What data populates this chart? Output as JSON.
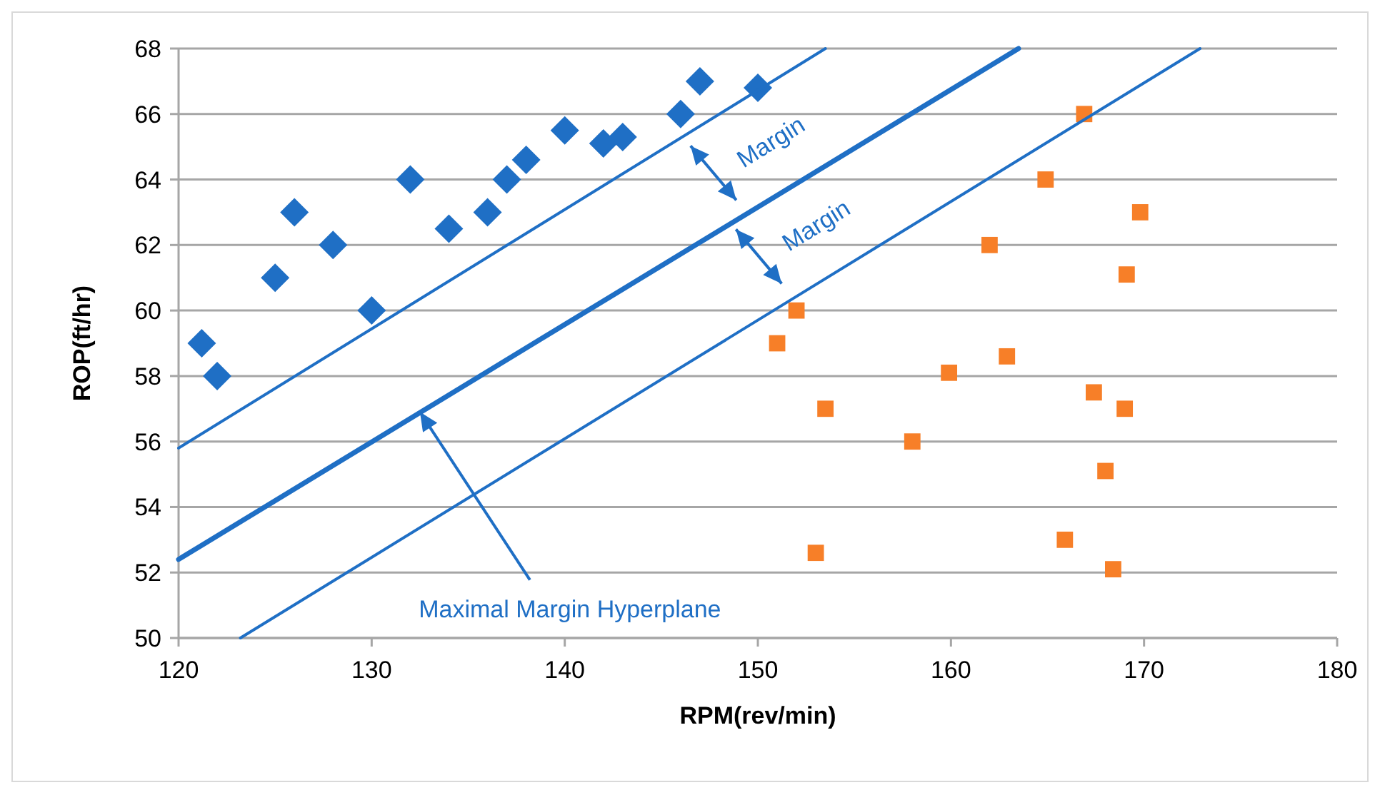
{
  "chart_data": {
    "type": "scatter",
    "xlabel": "RPM(rev/min)",
    "ylabel": "ROP(ft/hr)",
    "xlim": [
      120,
      180
    ],
    "xticks": [
      120,
      130,
      140,
      150,
      160,
      170,
      180
    ],
    "ylim": [
      50,
      68
    ],
    "yticks": [
      50,
      52,
      54,
      56,
      58,
      60,
      62,
      64,
      66,
      68
    ],
    "grid": "y",
    "series": [
      {
        "color": "#1f6fc5",
        "marker": "diamond",
        "x": [
          121.2,
          122,
          125,
          126,
          128,
          130,
          132,
          134,
          136,
          137,
          138,
          140,
          142,
          143,
          146,
          147,
          150
        ],
        "values": [
          59.0,
          58.0,
          61.0,
          63.0,
          62.0,
          60.0,
          64.0,
          62.5,
          63.0,
          64.0,
          64.6,
          65.5,
          65.1,
          65.3,
          66.0,
          67.0,
          66.8
        ]
      },
      {
        "color": "#f77f28",
        "marker": "square",
        "x": [
          166.9,
          164.9,
          169.8,
          162.0,
          169.1,
          152.0,
          151.0,
          162.9,
          159.9,
          167.4,
          169.0,
          153.5,
          158.0,
          168.0,
          165.9,
          153.0,
          168.4
        ],
        "values": [
          66.0,
          64.0,
          63.0,
          62.0,
          61.1,
          60.0,
          59.0,
          58.6,
          58.1,
          57.5,
          57.0,
          57.0,
          56.0,
          55.1,
          53.0,
          52.6,
          52.1
        ]
      },
      {
        "type": "line",
        "color": "#1f6fc5",
        "marker": "none",
        "line_style": "solid",
        "x": [
          120,
          153.5
        ],
        "values": [
          55.8,
          68
        ]
      },
      {
        "type": "line",
        "color": "#1f6fc5",
        "marker": "none",
        "line_style": "solid",
        "x": [
          120,
          163.5
        ],
        "values": [
          52.4,
          68
        ]
      },
      {
        "type": "line",
        "color": "#1f6fc5",
        "marker": "none",
        "line_style": "solid",
        "x": [
          123.2,
          172.9
        ],
        "values": [
          50,
          68
        ]
      }
    ],
    "annotations": [
      {
        "text": "Margin",
        "x": 147.7,
        "y": 64.2
      },
      {
        "text": "Margin",
        "x": 150.05,
        "y": 61.65
      },
      {
        "text": "Maximal Margin Hyperplane",
        "x": 132.5,
        "y": 56.9
      }
    ]
  }
}
